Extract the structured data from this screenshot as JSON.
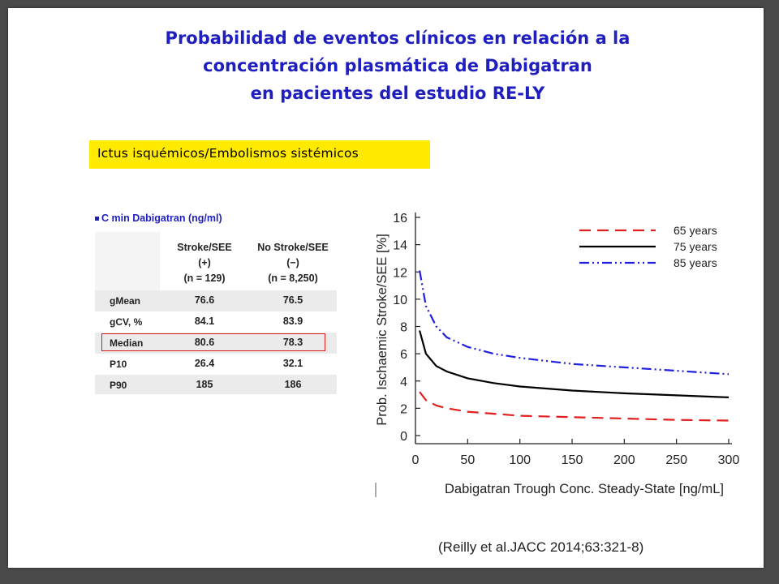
{
  "slide": {
    "title_lines": [
      "Probabilidad de eventos clínicos en relación a la",
      "concentración plasmática de Dabigatran",
      "en pacientes del estudio RE-LY"
    ],
    "subtitle": "Ictus isquémicos/Embolismos  sistémicos",
    "cmin_label": "C min Dabigatran (ng/ml)",
    "source": "(Reilly et al.JACC 2014;63:321-8)",
    "accent_color": "#1f1fbf",
    "highlight_color": "#ffea00"
  },
  "table": {
    "headers": [
      {
        "line1": "Stroke/SEE",
        "line2": "(+)",
        "line3": "(n = 129)"
      },
      {
        "line1": "No Stroke/SEE",
        "line2": "(−)",
        "line3": "(n = 8,250)"
      }
    ],
    "rows": [
      {
        "label": "gMean",
        "v1": "76.6",
        "v2": "76.5"
      },
      {
        "label": "gCV, %",
        "v1": "84.1",
        "v2": "83.9"
      },
      {
        "label": "Median",
        "v1": "80.6",
        "v2": "78.3"
      },
      {
        "label": "P10",
        "v1": "26.4",
        "v2": "32.1"
      },
      {
        "label": "P90",
        "v1": "185",
        "v2": "186"
      }
    ],
    "highlighted_row": "Median"
  },
  "chart_data": {
    "type": "line",
    "title": "",
    "xlabel": "Dabigatran Trough Conc. Steady-State [ng/mL]",
    "ylabel": "Prob. Ischaemic Stroke/SEE [%]",
    "xlim": [
      0,
      300
    ],
    "ylim": [
      0,
      16
    ],
    "xticks": [
      0,
      50,
      100,
      150,
      200,
      250,
      300
    ],
    "yticks": [
      0,
      2,
      4,
      6,
      8,
      10,
      12,
      14,
      16
    ],
    "grid": false,
    "legend_position": "top-right",
    "series": [
      {
        "name": "65 years",
        "color": "#e02020",
        "dash": "dashed",
        "x": [
          4,
          10,
          20,
          30,
          50,
          75,
          100,
          150,
          200,
          250,
          300
        ],
        "y": [
          3.2,
          2.6,
          2.2,
          2.0,
          1.75,
          1.6,
          1.45,
          1.35,
          1.25,
          1.15,
          1.1
        ]
      },
      {
        "name": "75 years",
        "color": "#000000",
        "dash": "solid",
        "x": [
          4,
          10,
          20,
          30,
          50,
          75,
          100,
          150,
          200,
          250,
          300
        ],
        "y": [
          7.7,
          6.0,
          5.1,
          4.7,
          4.2,
          3.85,
          3.6,
          3.3,
          3.1,
          2.95,
          2.8
        ]
      },
      {
        "name": "85 years",
        "color": "#1f1fdf",
        "dash": "dashdotdot",
        "x": [
          4,
          10,
          20,
          30,
          50,
          75,
          100,
          150,
          200,
          250,
          300
        ],
        "y": [
          12.1,
          9.5,
          8.0,
          7.2,
          6.5,
          6.0,
          5.7,
          5.25,
          5.0,
          4.75,
          4.5
        ]
      }
    ]
  }
}
